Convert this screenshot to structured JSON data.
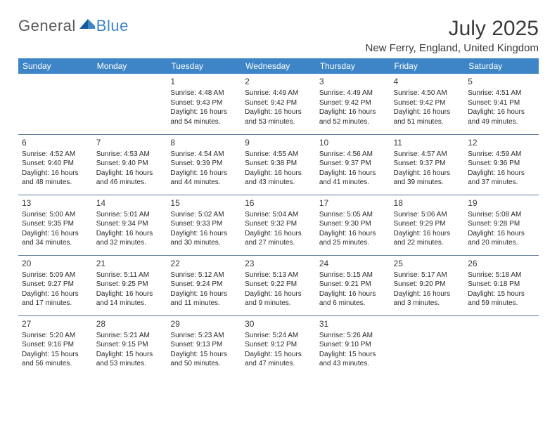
{
  "logo": {
    "general": "General",
    "blue": "Blue"
  },
  "title": {
    "month_year": "July 2025",
    "location": "New Ferry, England, United Kingdom"
  },
  "colors": {
    "header_bg": "#3d85c6",
    "header_text": "#ffffff",
    "border": "#5a7a9a",
    "body_text": "#2a2a2a",
    "title_text": "#3a3a3a",
    "logo_gray": "#5a5a5a",
    "logo_blue": "#3d85c6",
    "background": "#ffffff"
  },
  "day_labels": [
    "Sunday",
    "Monday",
    "Tuesday",
    "Wednesday",
    "Thursday",
    "Friday",
    "Saturday"
  ],
  "weeks": [
    [
      {
        "day": null
      },
      {
        "day": null
      },
      {
        "day": "1",
        "sunrise": "Sunrise: 4:48 AM",
        "sunset": "Sunset: 9:43 PM",
        "daylight": "Daylight: 16 hours and 54 minutes."
      },
      {
        "day": "2",
        "sunrise": "Sunrise: 4:49 AM",
        "sunset": "Sunset: 9:42 PM",
        "daylight": "Daylight: 16 hours and 53 minutes."
      },
      {
        "day": "3",
        "sunrise": "Sunrise: 4:49 AM",
        "sunset": "Sunset: 9:42 PM",
        "daylight": "Daylight: 16 hours and 52 minutes."
      },
      {
        "day": "4",
        "sunrise": "Sunrise: 4:50 AM",
        "sunset": "Sunset: 9:42 PM",
        "daylight": "Daylight: 16 hours and 51 minutes."
      },
      {
        "day": "5",
        "sunrise": "Sunrise: 4:51 AM",
        "sunset": "Sunset: 9:41 PM",
        "daylight": "Daylight: 16 hours and 49 minutes."
      }
    ],
    [
      {
        "day": "6",
        "sunrise": "Sunrise: 4:52 AM",
        "sunset": "Sunset: 9:40 PM",
        "daylight": "Daylight: 16 hours and 48 minutes."
      },
      {
        "day": "7",
        "sunrise": "Sunrise: 4:53 AM",
        "sunset": "Sunset: 9:40 PM",
        "daylight": "Daylight: 16 hours and 46 minutes."
      },
      {
        "day": "8",
        "sunrise": "Sunrise: 4:54 AM",
        "sunset": "Sunset: 9:39 PM",
        "daylight": "Daylight: 16 hours and 44 minutes."
      },
      {
        "day": "9",
        "sunrise": "Sunrise: 4:55 AM",
        "sunset": "Sunset: 9:38 PM",
        "daylight": "Daylight: 16 hours and 43 minutes."
      },
      {
        "day": "10",
        "sunrise": "Sunrise: 4:56 AM",
        "sunset": "Sunset: 9:37 PM",
        "daylight": "Daylight: 16 hours and 41 minutes."
      },
      {
        "day": "11",
        "sunrise": "Sunrise: 4:57 AM",
        "sunset": "Sunset: 9:37 PM",
        "daylight": "Daylight: 16 hours and 39 minutes."
      },
      {
        "day": "12",
        "sunrise": "Sunrise: 4:59 AM",
        "sunset": "Sunset: 9:36 PM",
        "daylight": "Daylight: 16 hours and 37 minutes."
      }
    ],
    [
      {
        "day": "13",
        "sunrise": "Sunrise: 5:00 AM",
        "sunset": "Sunset: 9:35 PM",
        "daylight": "Daylight: 16 hours and 34 minutes."
      },
      {
        "day": "14",
        "sunrise": "Sunrise: 5:01 AM",
        "sunset": "Sunset: 9:34 PM",
        "daylight": "Daylight: 16 hours and 32 minutes."
      },
      {
        "day": "15",
        "sunrise": "Sunrise: 5:02 AM",
        "sunset": "Sunset: 9:33 PM",
        "daylight": "Daylight: 16 hours and 30 minutes."
      },
      {
        "day": "16",
        "sunrise": "Sunrise: 5:04 AM",
        "sunset": "Sunset: 9:32 PM",
        "daylight": "Daylight: 16 hours and 27 minutes."
      },
      {
        "day": "17",
        "sunrise": "Sunrise: 5:05 AM",
        "sunset": "Sunset: 9:30 PM",
        "daylight": "Daylight: 16 hours and 25 minutes."
      },
      {
        "day": "18",
        "sunrise": "Sunrise: 5:06 AM",
        "sunset": "Sunset: 9:29 PM",
        "daylight": "Daylight: 16 hours and 22 minutes."
      },
      {
        "day": "19",
        "sunrise": "Sunrise: 5:08 AM",
        "sunset": "Sunset: 9:28 PM",
        "daylight": "Daylight: 16 hours and 20 minutes."
      }
    ],
    [
      {
        "day": "20",
        "sunrise": "Sunrise: 5:09 AM",
        "sunset": "Sunset: 9:27 PM",
        "daylight": "Daylight: 16 hours and 17 minutes."
      },
      {
        "day": "21",
        "sunrise": "Sunrise: 5:11 AM",
        "sunset": "Sunset: 9:25 PM",
        "daylight": "Daylight: 16 hours and 14 minutes."
      },
      {
        "day": "22",
        "sunrise": "Sunrise: 5:12 AM",
        "sunset": "Sunset: 9:24 PM",
        "daylight": "Daylight: 16 hours and 11 minutes."
      },
      {
        "day": "23",
        "sunrise": "Sunrise: 5:13 AM",
        "sunset": "Sunset: 9:22 PM",
        "daylight": "Daylight: 16 hours and 9 minutes."
      },
      {
        "day": "24",
        "sunrise": "Sunrise: 5:15 AM",
        "sunset": "Sunset: 9:21 PM",
        "daylight": "Daylight: 16 hours and 6 minutes."
      },
      {
        "day": "25",
        "sunrise": "Sunrise: 5:17 AM",
        "sunset": "Sunset: 9:20 PM",
        "daylight": "Daylight: 16 hours and 3 minutes."
      },
      {
        "day": "26",
        "sunrise": "Sunrise: 5:18 AM",
        "sunset": "Sunset: 9:18 PM",
        "daylight": "Daylight: 15 hours and 59 minutes."
      }
    ],
    [
      {
        "day": "27",
        "sunrise": "Sunrise: 5:20 AM",
        "sunset": "Sunset: 9:16 PM",
        "daylight": "Daylight: 15 hours and 56 minutes."
      },
      {
        "day": "28",
        "sunrise": "Sunrise: 5:21 AM",
        "sunset": "Sunset: 9:15 PM",
        "daylight": "Daylight: 15 hours and 53 minutes."
      },
      {
        "day": "29",
        "sunrise": "Sunrise: 5:23 AM",
        "sunset": "Sunset: 9:13 PM",
        "daylight": "Daylight: 15 hours and 50 minutes."
      },
      {
        "day": "30",
        "sunrise": "Sunrise: 5:24 AM",
        "sunset": "Sunset: 9:12 PM",
        "daylight": "Daylight: 15 hours and 47 minutes."
      },
      {
        "day": "31",
        "sunrise": "Sunrise: 5:26 AM",
        "sunset": "Sunset: 9:10 PM",
        "daylight": "Daylight: 15 hours and 43 minutes."
      },
      {
        "day": null
      },
      {
        "day": null
      }
    ]
  ]
}
